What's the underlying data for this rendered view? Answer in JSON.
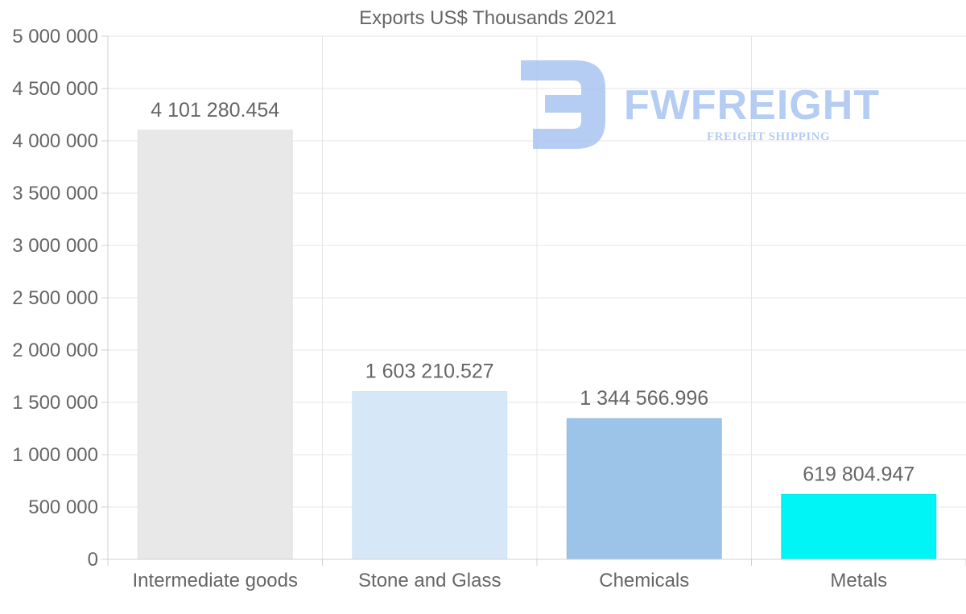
{
  "chart_data": {
    "type": "bar",
    "title": "Exports US$ Thousands 2021",
    "xlabel": "",
    "ylabel": "",
    "ylim": [
      0,
      5000000
    ],
    "grid": true,
    "legend": "none",
    "y_ticks": [
      {
        "value": 0,
        "label": "0"
      },
      {
        "value": 500000,
        "label": "500 000"
      },
      {
        "value": 1000000,
        "label": "1 000 000"
      },
      {
        "value": 1500000,
        "label": "1 500 000"
      },
      {
        "value": 2000000,
        "label": "2 000 000"
      },
      {
        "value": 2500000,
        "label": "2 500 000"
      },
      {
        "value": 3000000,
        "label": "3 000 000"
      },
      {
        "value": 3500000,
        "label": "3 500 000"
      },
      {
        "value": 4000000,
        "label": "4 000 000"
      },
      {
        "value": 4500000,
        "label": "4 500 000"
      },
      {
        "value": 5000000,
        "label": "5 000 000"
      }
    ],
    "categories": [
      "Intermediate goods",
      "Stone and Glass",
      "Chemicals",
      "Metals"
    ],
    "values": [
      4101280.454,
      1603210.527,
      1344566.996,
      619804.947
    ],
    "value_labels": [
      "4 101 280.454",
      "1 603 210.527",
      "1 344 566.996",
      "619 804.947"
    ],
    "bar_colors": [
      "#e8e8e8",
      "#d6e7f8",
      "#9bc4e8",
      "#00f6f6"
    ],
    "bar_border_colors": [
      "#e0e0e0",
      "#cfe2f6",
      "#91bce2",
      "#00eaea"
    ]
  },
  "watermark": {
    "brand": "FWFREIGHT",
    "tagline": "FREIGHT SHIPPING",
    "color": "#a9c4f1"
  }
}
